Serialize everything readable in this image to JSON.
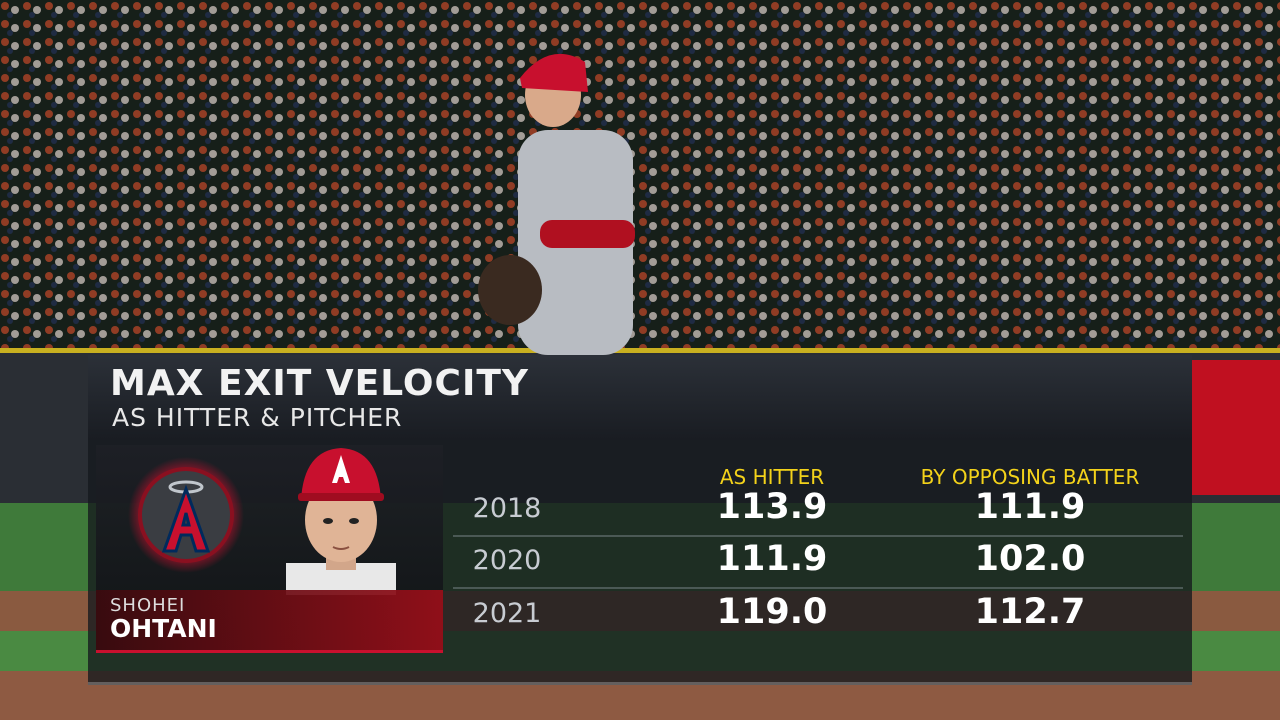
{
  "header": {
    "title": "MAX EXIT VELOCITY",
    "subtitle": "AS HITTER & PITCHER"
  },
  "player": {
    "first_name": "SHOHEI",
    "last_name": "OHTANI"
  },
  "table": {
    "columns": [
      "AS HITTER",
      "BY OPPOSING BATTER"
    ],
    "rows": [
      {
        "year": "2018",
        "values": [
          "113.9",
          "111.9"
        ]
      },
      {
        "year": "2020",
        "values": [
          "111.9",
          "102.0"
        ]
      },
      {
        "year": "2021",
        "values": [
          "119.0",
          "112.7"
        ]
      }
    ]
  }
}
